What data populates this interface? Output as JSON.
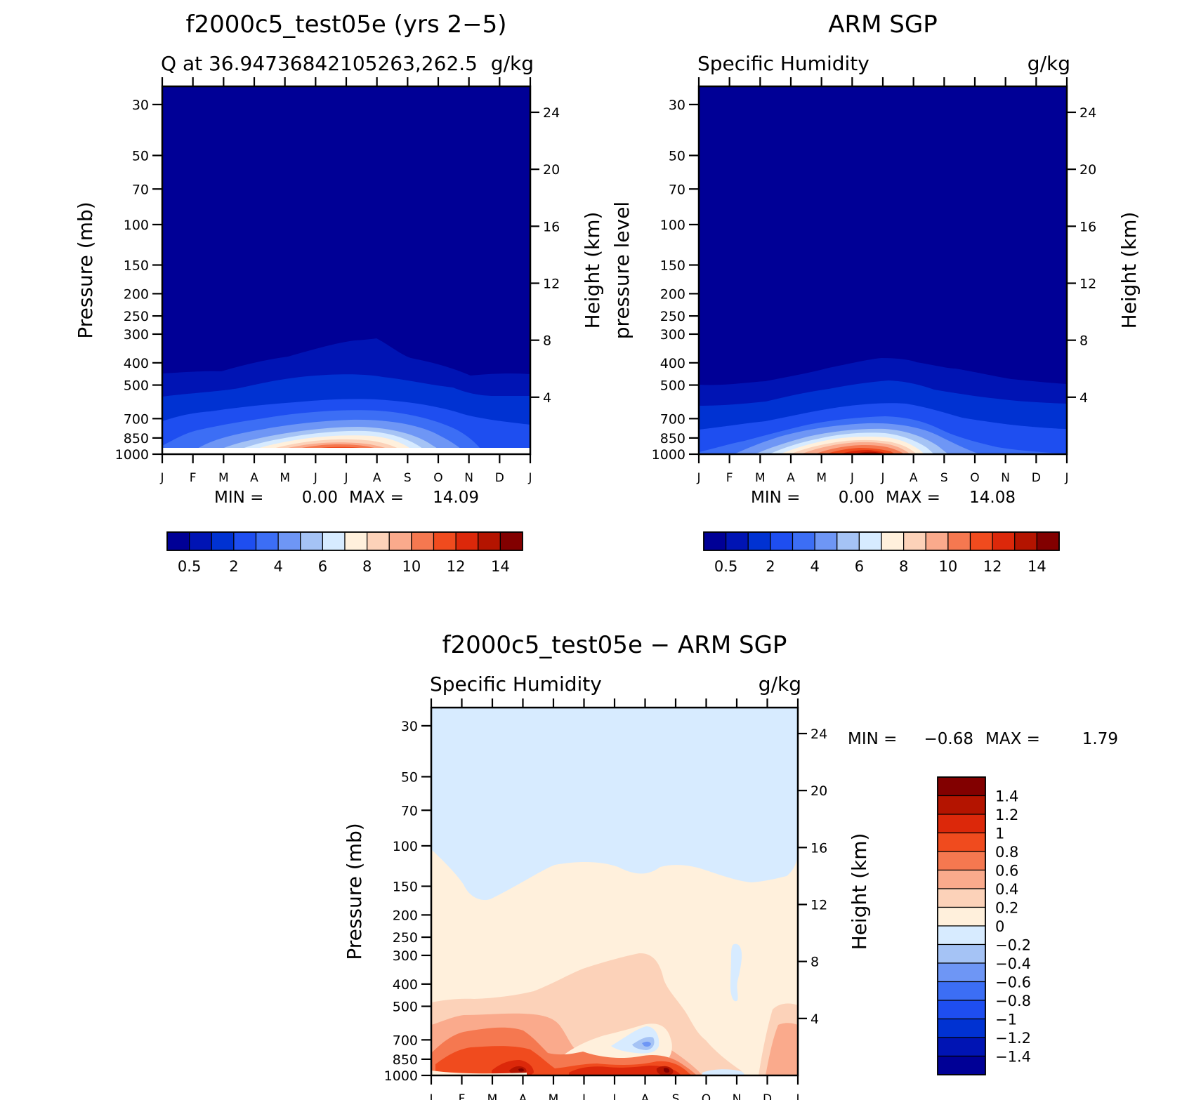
{
  "panels": [
    {
      "id": "model",
      "title": "f2000c5_test05e (yrs 2−5)",
      "left_label": "Q at 36.94736842105263,262.5",
      "right_label": "g/kg",
      "ylabel": "Pressure (mb)",
      "ylabel_right": "Height (km)",
      "min_label": "MIN =",
      "min_value": "0.00",
      "max_label": "MAX =",
      "max_value": "14.09"
    },
    {
      "id": "obs",
      "title": "ARM SGP",
      "left_label": "Specific Humidity",
      "right_label": "g/kg",
      "ylabel": "pressure level",
      "ylabel_right": "Height (km)",
      "min_label": "MIN =",
      "min_value": "0.00",
      "max_label": "MAX =",
      "max_value": "14.08"
    },
    {
      "id": "diff",
      "title": "f2000c5_test05e − ARM SGP",
      "left_label": "Specific Humidity",
      "right_label": "g/kg",
      "ylabel": "Pressure (mb)",
      "ylabel_right": "Height (km)",
      "min_label": "MIN =",
      "min_value": "−0.68",
      "max_label": "MAX =",
      "max_value": "1.79"
    }
  ],
  "chart_data": [
    {
      "type": "heatmap",
      "panel": "model",
      "x_months": [
        "J",
        "F",
        "M",
        "A",
        "M",
        "J",
        "J",
        "A",
        "S",
        "O",
        "N",
        "D",
        "J"
      ],
      "pressure_ticks": [
        30,
        50,
        70,
        100,
        150,
        200,
        250,
        300,
        400,
        500,
        700,
        850,
        1000
      ],
      "pressure_range": [
        25,
        1000
      ],
      "height_ticks_km": [
        24,
        20,
        16,
        12,
        8,
        4
      ],
      "colorbar_labels": [
        "0.5",
        "2",
        "4",
        "6",
        "8",
        "10",
        "12",
        "14"
      ],
      "colorbar_colors": [
        "#000096",
        "#0014b4",
        "#0032d2",
        "#1e4ef0",
        "#3c6ef5",
        "#6e96f5",
        "#a5c3f5",
        "#d7ebff",
        "#fff0dc",
        "#fcd2b9",
        "#faaa8c",
        "#f57850",
        "#f04b1e",
        "#dc280a",
        "#b41400",
        "#820000"
      ],
      "max_value": 14.09,
      "min_value": 0.0
    },
    {
      "type": "heatmap",
      "panel": "obs",
      "x_months": [
        "J",
        "F",
        "M",
        "A",
        "M",
        "J",
        "J",
        "A",
        "S",
        "O",
        "N",
        "D",
        "J"
      ],
      "pressure_ticks": [
        30,
        50,
        70,
        100,
        150,
        200,
        250,
        300,
        400,
        500,
        700,
        850,
        1000
      ],
      "pressure_range": [
        25,
        1000
      ],
      "height_ticks_km": [
        24,
        20,
        16,
        12,
        8,
        4
      ],
      "colorbar_labels": [
        "0.5",
        "2",
        "4",
        "6",
        "8",
        "10",
        "12",
        "14"
      ],
      "colorbar_colors": [
        "#000096",
        "#0014b4",
        "#0032d2",
        "#1e4ef0",
        "#3c6ef5",
        "#6e96f5",
        "#a5c3f5",
        "#d7ebff",
        "#fff0dc",
        "#fcd2b9",
        "#faaa8c",
        "#f57850",
        "#f04b1e",
        "#dc280a",
        "#b41400",
        "#820000"
      ],
      "max_value": 14.08,
      "min_value": 0.0
    },
    {
      "type": "heatmap",
      "panel": "diff",
      "x_months": [
        "J",
        "F",
        "M",
        "A",
        "M",
        "J",
        "J",
        "A",
        "S",
        "O",
        "N",
        "D",
        "J"
      ],
      "pressure_ticks": [
        30,
        50,
        70,
        100,
        150,
        200,
        250,
        300,
        400,
        500,
        700,
        850,
        1000
      ],
      "pressure_range": [
        25,
        1000
      ],
      "height_ticks_km": [
        24,
        20,
        16,
        12,
        8,
        4
      ],
      "colorbar_labels": [
        "1.4",
        "1.2",
        "1",
        "0.8",
        "0.6",
        "0.4",
        "0.2",
        "0",
        "−0.2",
        "−0.4",
        "−0.6",
        "−0.8",
        "−1",
        "−1.2",
        "−1.4"
      ],
      "colorbar_colors": [
        "#820000",
        "#b41400",
        "#dc280a",
        "#f04b1e",
        "#f57850",
        "#faaa8c",
        "#fcd2b9",
        "#fff0dc",
        "#d7ebff",
        "#a5c3f5",
        "#6e96f5",
        "#3c6ef5",
        "#1e4ef0",
        "#0032d2",
        "#0014b4",
        "#000096"
      ],
      "max_value": 1.79,
      "min_value": -0.68
    }
  ]
}
